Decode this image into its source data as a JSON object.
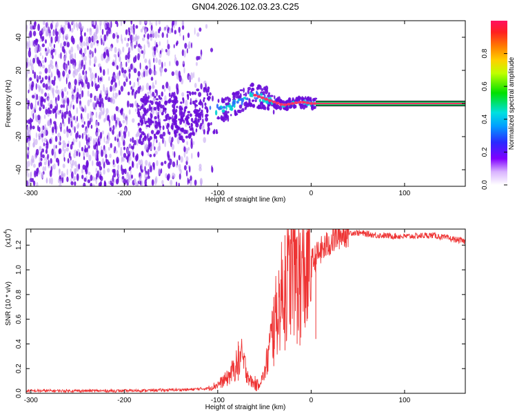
{
  "title": "GN04.2026.102.03.23.C25",
  "colors": {
    "snr_line": "#ee3333",
    "ridge_line": "#00cc66",
    "ridge_core": "#ff3366",
    "scatter_main": "#6a0dd9",
    "scatter_light": "#c7a8f2"
  },
  "chart_data": [
    {
      "type": "heatmap",
      "name": "spectrogram",
      "xlabel": "Height of straight line (km)",
      "ylabel": "Frequency (Hz)",
      "xlim": [
        -305,
        165
      ],
      "ylim": [
        -50,
        50
      ],
      "x_ticks": [
        -300,
        -200,
        -100,
        0,
        100
      ],
      "x_tick_labels": [
        "-300",
        "-200",
        "-100",
        "0",
        "100"
      ],
      "y_ticks": [
        -40,
        -20,
        0,
        20,
        40
      ],
      "y_tick_labels": [
        "-40",
        "-20",
        "0",
        "20",
        "40"
      ],
      "ridge": {
        "x": [
          -180,
          -160,
          -140,
          -120,
          -100,
          -90,
          -80,
          -70,
          -60,
          -50,
          -40,
          -30,
          -20,
          -10,
          0,
          165
        ],
        "y": [
          -10,
          -8,
          -7,
          -5,
          -4,
          -3,
          0,
          3,
          5,
          3,
          1,
          -1,
          0,
          1,
          0,
          0
        ]
      },
      "colorbar": {
        "label": "Normalized spectral amplitude",
        "range": [
          0,
          1
        ],
        "ticks": [
          0.0,
          0.2,
          0.4,
          0.6,
          0.8
        ],
        "tick_labels": [
          "0.0",
          "0.2",
          "0.4",
          "0.6",
          "0.8"
        ]
      }
    },
    {
      "type": "line",
      "name": "snr",
      "xlabel": "Height of straight line (km)",
      "ylabel": "SNR (10 * v/v)",
      "y_multiplier_label": "(x10",
      "y_multiplier_exp": "4",
      "y_multiplier_close": ")",
      "xlim": [
        -305,
        165
      ],
      "ylim": [
        0,
        1.33
      ],
      "x_ticks": [
        -300,
        -200,
        -100,
        0,
        100
      ],
      "x_tick_labels": [
        "-300",
        "-200",
        "-100",
        "0",
        "100"
      ],
      "y_ticks": [
        0.0,
        0.2,
        0.4,
        0.6,
        0.8,
        1.0,
        1.2
      ],
      "y_tick_labels": [
        "0.0",
        "0.2",
        "0.4",
        "0.6",
        "0.8",
        "1.0",
        "1.2"
      ],
      "envelope": {
        "x": [
          -305,
          -200,
          -130,
          -110,
          -100,
          -90,
          -82,
          -75,
          -70,
          -65,
          -58,
          -50,
          -45,
          -40,
          -35,
          -30,
          -25,
          -20,
          -15,
          -10,
          -5,
          0,
          10,
          20,
          30,
          40,
          50,
          70,
          100,
          130,
          165
        ],
        "y": [
          0.02,
          0.02,
          0.03,
          0.04,
          0.07,
          0.12,
          0.2,
          0.3,
          0.2,
          0.1,
          0.06,
          0.15,
          0.35,
          0.55,
          0.7,
          0.85,
          0.9,
          1.0,
          1.0,
          0.95,
          0.95,
          1.05,
          1.15,
          1.22,
          1.28,
          1.3,
          1.3,
          1.28,
          1.27,
          1.28,
          1.23
        ]
      },
      "spikes": {
        "x": [
          -78,
          -60,
          -40,
          -28,
          -15,
          -12,
          5
        ],
        "y": [
          0.42,
          0.14,
          0.78,
          1.28,
          1.27,
          1.2,
          1.12
        ]
      }
    }
  ]
}
